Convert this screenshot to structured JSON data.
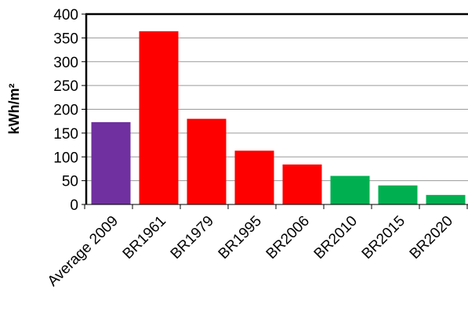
{
  "chart_data": {
    "type": "bar",
    "title": "",
    "xlabel": "",
    "ylabel": "kWh/m²",
    "ylim": [
      0,
      400
    ],
    "yticks": [
      0,
      50,
      100,
      150,
      200,
      250,
      300,
      350,
      400
    ],
    "grid": true,
    "legend": "none",
    "categories": [
      "Average 2009",
      "BR1961",
      "BR1979",
      "BR1995",
      "BR2006",
      "BR2010",
      "BR2015",
      "BR2020"
    ],
    "values": [
      173,
      364,
      180,
      113,
      84,
      60,
      40,
      20
    ],
    "colors": [
      "#7030A0",
      "#FF0000",
      "#FF0000",
      "#FF0000",
      "#FF0000",
      "#00B050",
      "#00B050",
      "#00B050"
    ]
  }
}
